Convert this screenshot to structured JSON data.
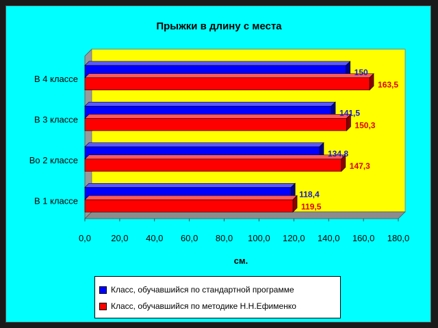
{
  "chart_data": {
    "type": "bar",
    "orientation": "horizontal",
    "title": "Прыжки в длину с места",
    "xlabel": "см.",
    "ylabel": "",
    "xlim": [
      0,
      180
    ],
    "x_ticks": [
      "0,0",
      "20,0",
      "40,0",
      "60,0",
      "80,0",
      "100,0",
      "120,0",
      "140,0",
      "160,0",
      "180,0"
    ],
    "categories": [
      "В 4 классе",
      "В 3 классе",
      "Во 2 классе",
      "В 1 классе"
    ],
    "series": [
      {
        "name": "Класс, обучавшийся по стандартной программе",
        "color": "#0000ff",
        "label_color": "#1a1acc",
        "values": [
          150,
          141.5,
          134.8,
          118.4
        ],
        "labels": [
          "150",
          "141,5",
          "134,8",
          "118,4"
        ]
      },
      {
        "name": "Класс, обучавшийся по методике Н.Н.Ефименко",
        "color": "#ff0000",
        "label_color": "#dd0000",
        "values": [
          163.5,
          150.3,
          147.3,
          119.5
        ],
        "labels": [
          "163,5",
          "150,3",
          "147,3",
          "119,5"
        ]
      }
    ],
    "plot_background": "#ffff00",
    "legend_position": "bottom",
    "grid": false
  }
}
